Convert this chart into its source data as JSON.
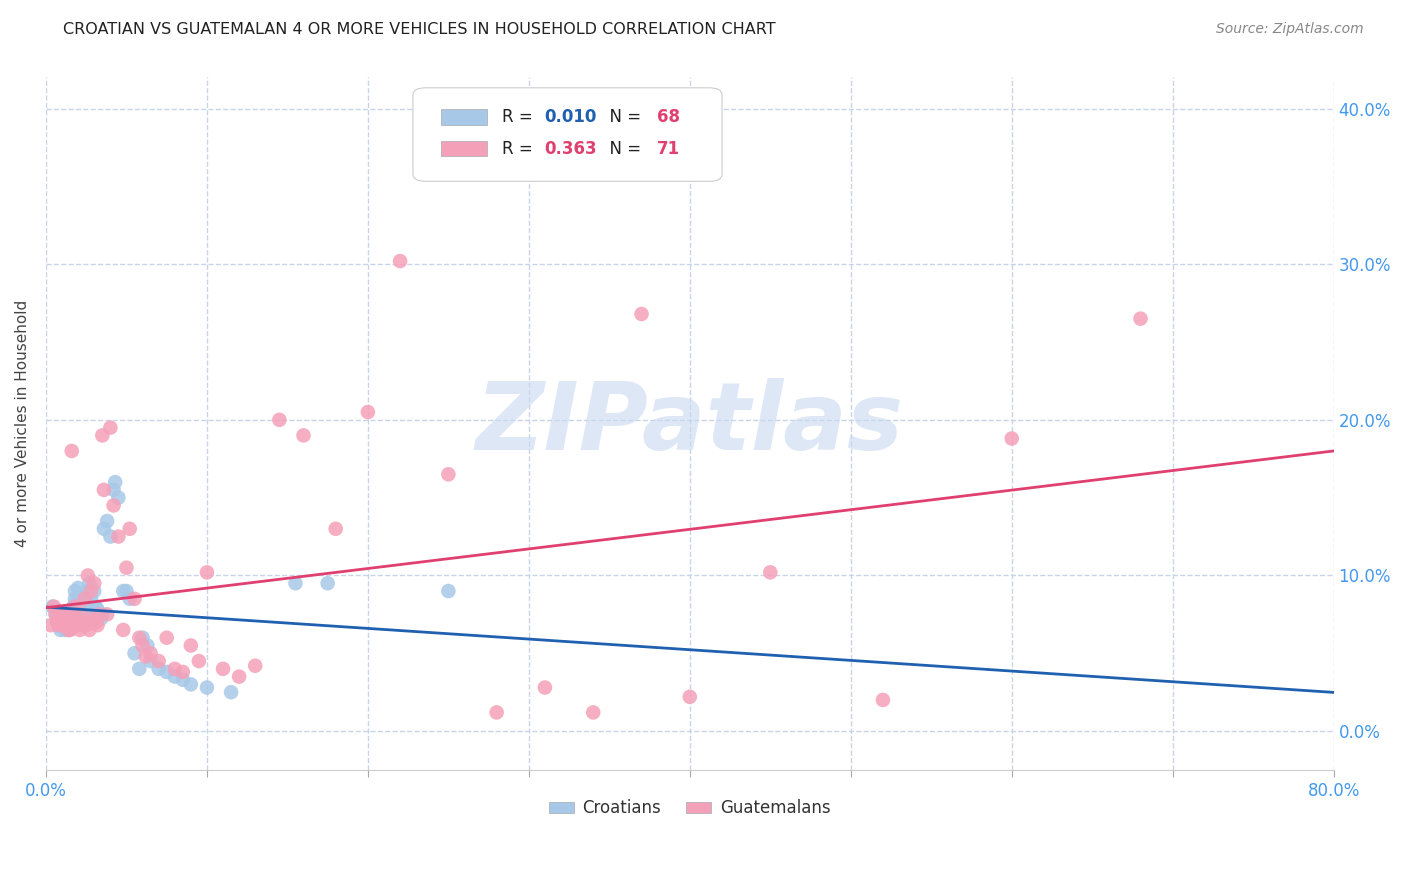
{
  "title": "CROATIAN VS GUATEMALAN 4 OR MORE VEHICLES IN HOUSEHOLD CORRELATION CHART",
  "source": "Source: ZipAtlas.com",
  "ylabel": "4 or more Vehicles in Household",
  "xlim": [
    0.0,
    0.8
  ],
  "ylim": [
    -0.025,
    0.42
  ],
  "xticks": [
    0.0,
    0.1,
    0.2,
    0.3,
    0.4,
    0.5,
    0.6,
    0.7,
    0.8
  ],
  "xticklabels_sparse": {
    "0.0": "0.0%",
    "0.8": "80.0%"
  },
  "yticks": [
    0.0,
    0.1,
    0.2,
    0.3,
    0.4
  ],
  "right_yticklabels": [
    "0.0%",
    "10.0%",
    "20.0%",
    "30.0%",
    "40.0%"
  ],
  "croatian_R": 0.01,
  "croatian_N": 68,
  "guatemalan_R": 0.363,
  "guatemalan_N": 71,
  "croatian_color": "#a8c8e8",
  "guatemalan_color": "#f4a0b8",
  "croatian_line_color": "#2060b0",
  "guatemalan_line_color": "#e04070",
  "watermark_text": "ZIPatlas",
  "background_color": "#ffffff",
  "grid_color": "#c8d4e8",
  "title_color": "#222222",
  "source_color": "#888888",
  "tick_color": "#4499ee",
  "legend_label_color": "#222222",
  "croatian_x": [
    0.004,
    0.006,
    0.007,
    0.008,
    0.009,
    0.009,
    0.01,
    0.01,
    0.011,
    0.012,
    0.012,
    0.013,
    0.013,
    0.014,
    0.014,
    0.015,
    0.015,
    0.016,
    0.016,
    0.017,
    0.017,
    0.018,
    0.018,
    0.018,
    0.019,
    0.019,
    0.02,
    0.02,
    0.021,
    0.022,
    0.022,
    0.023,
    0.024,
    0.025,
    0.025,
    0.026,
    0.027,
    0.028,
    0.03,
    0.031,
    0.032,
    0.033,
    0.034,
    0.035,
    0.036,
    0.038,
    0.04,
    0.042,
    0.043,
    0.045,
    0.048,
    0.05,
    0.052,
    0.055,
    0.058,
    0.06,
    0.063,
    0.065,
    0.07,
    0.075,
    0.08,
    0.085,
    0.09,
    0.1,
    0.115,
    0.155,
    0.175,
    0.25
  ],
  "croatian_y": [
    0.08,
    0.075,
    0.07,
    0.068,
    0.065,
    0.072,
    0.07,
    0.075,
    0.068,
    0.065,
    0.07,
    0.075,
    0.072,
    0.068,
    0.065,
    0.072,
    0.068,
    0.078,
    0.072,
    0.068,
    0.08,
    0.09,
    0.085,
    0.08,
    0.075,
    0.078,
    0.092,
    0.085,
    0.08,
    0.075,
    0.07,
    0.068,
    0.075,
    0.08,
    0.085,
    0.09,
    0.095,
    0.085,
    0.09,
    0.08,
    0.078,
    0.075,
    0.072,
    0.075,
    0.13,
    0.135,
    0.125,
    0.155,
    0.16,
    0.15,
    0.09,
    0.09,
    0.085,
    0.05,
    0.04,
    0.06,
    0.055,
    0.045,
    0.04,
    0.038,
    0.035,
    0.033,
    0.03,
    0.028,
    0.025,
    0.095,
    0.095,
    0.09
  ],
  "guatemalan_x": [
    0.003,
    0.005,
    0.006,
    0.007,
    0.008,
    0.009,
    0.01,
    0.011,
    0.012,
    0.013,
    0.014,
    0.015,
    0.015,
    0.016,
    0.017,
    0.018,
    0.018,
    0.019,
    0.02,
    0.021,
    0.022,
    0.023,
    0.024,
    0.025,
    0.026,
    0.027,
    0.028,
    0.029,
    0.03,
    0.031,
    0.032,
    0.033,
    0.035,
    0.036,
    0.038,
    0.04,
    0.042,
    0.045,
    0.048,
    0.05,
    0.052,
    0.055,
    0.058,
    0.06,
    0.062,
    0.065,
    0.07,
    0.075,
    0.08,
    0.085,
    0.09,
    0.095,
    0.1,
    0.11,
    0.12,
    0.13,
    0.145,
    0.16,
    0.18,
    0.2,
    0.22,
    0.25,
    0.28,
    0.31,
    0.34,
    0.37,
    0.4,
    0.45,
    0.52,
    0.6,
    0.68
  ],
  "guatemalan_y": [
    0.068,
    0.08,
    0.075,
    0.07,
    0.068,
    0.072,
    0.075,
    0.068,
    0.072,
    0.07,
    0.065,
    0.075,
    0.065,
    0.18,
    0.072,
    0.08,
    0.07,
    0.068,
    0.068,
    0.065,
    0.075,
    0.07,
    0.085,
    0.068,
    0.1,
    0.065,
    0.09,
    0.072,
    0.095,
    0.07,
    0.068,
    0.075,
    0.19,
    0.155,
    0.075,
    0.195,
    0.145,
    0.125,
    0.065,
    0.105,
    0.13,
    0.085,
    0.06,
    0.055,
    0.048,
    0.05,
    0.045,
    0.06,
    0.04,
    0.038,
    0.055,
    0.045,
    0.102,
    0.04,
    0.035,
    0.042,
    0.2,
    0.19,
    0.13,
    0.205,
    0.302,
    0.165,
    0.012,
    0.028,
    0.012,
    0.268,
    0.022,
    0.102,
    0.02,
    0.188,
    0.265
  ]
}
